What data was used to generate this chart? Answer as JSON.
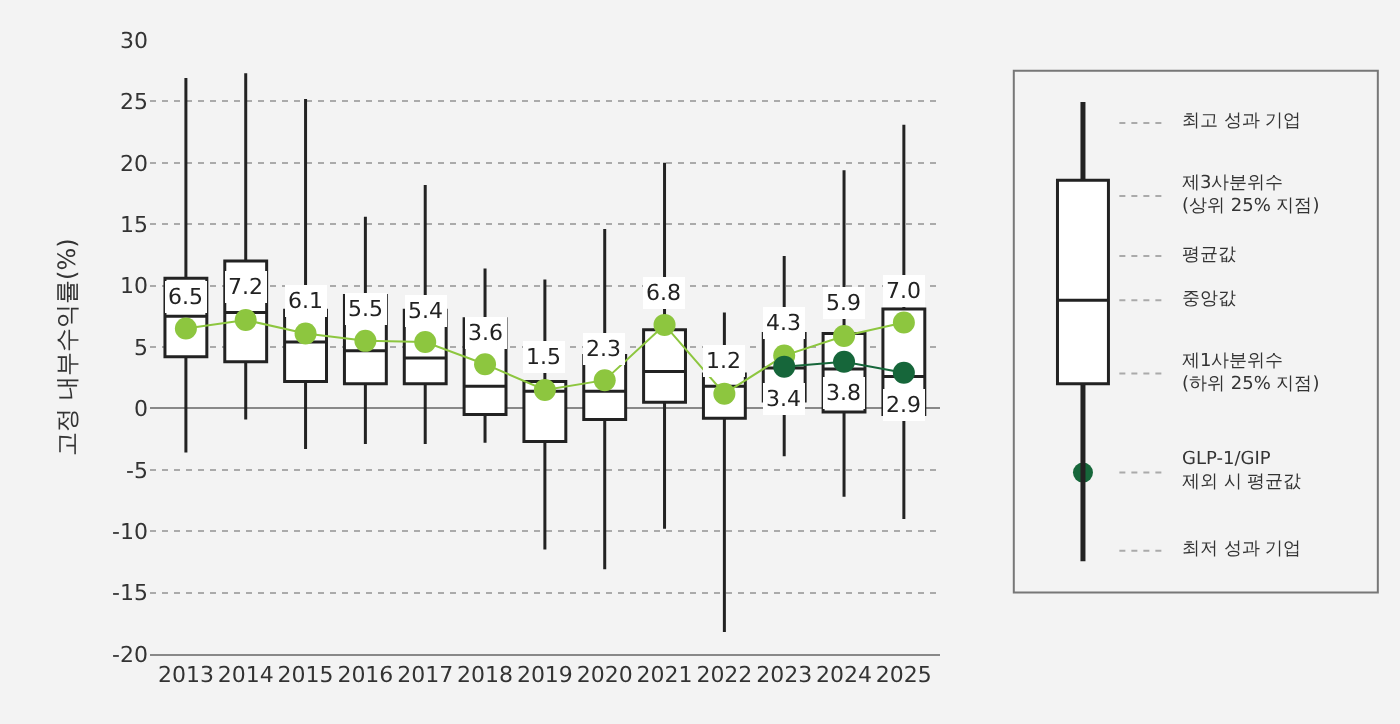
{
  "chart_data": {
    "type": "box",
    "ylabel": "고정 내부수익률(%)",
    "categories": [
      "2013",
      "2014",
      "2015",
      "2016",
      "2017",
      "2018",
      "2019",
      "2020",
      "2021",
      "2022",
      "2023",
      "2024",
      "2025"
    ],
    "boxes": [
      {
        "low": -3.6,
        "q1": 4.2,
        "median": 7.5,
        "q3": 10.6,
        "high": 26.9
      },
      {
        "low": -0.9,
        "q1": 3.8,
        "median": 7.8,
        "q3": 12.0,
        "high": 27.3
      },
      {
        "low": -3.3,
        "q1": 2.2,
        "median": 5.4,
        "q3": 8.0,
        "high": 25.2
      },
      {
        "low": -2.9,
        "q1": 2.0,
        "median": 4.7,
        "q3": 9.2,
        "high": 15.6
      },
      {
        "low": -2.9,
        "q1": 2.0,
        "median": 4.1,
        "q3": 8.0,
        "high": 18.2
      },
      {
        "low": -2.8,
        "q1": -0.5,
        "median": 1.8,
        "q3": 7.3,
        "high": 11.4
      },
      {
        "low": -11.5,
        "q1": -2.7,
        "median": 1.4,
        "q3": 2.2,
        "high": 10.5
      },
      {
        "low": -13.1,
        "q1": -0.9,
        "median": 1.4,
        "q3": 4.3,
        "high": 14.6
      },
      {
        "low": -9.8,
        "q1": 0.5,
        "median": 3.0,
        "q3": 6.4,
        "high": 20.0
      },
      {
        "low": -18.2,
        "q1": -0.8,
        "median": 1.8,
        "q3": 2.8,
        "high": 7.8
      },
      {
        "low": -3.9,
        "q1": 0.6,
        "median": 3.3,
        "q3": 6.1,
        "high": 12.4
      },
      {
        "low": -7.2,
        "q1": -0.3,
        "median": 3.2,
        "q3": 6.1,
        "high": 19.4
      },
      {
        "low": -9.0,
        "q1": -0.5,
        "median": 2.6,
        "q3": 8.1,
        "high": 23.1
      }
    ],
    "series": [
      {
        "name": "평균값",
        "type": "line",
        "color": "#8dc63f",
        "values": [
          6.5,
          7.2,
          6.1,
          5.5,
          5.4,
          3.6,
          1.5,
          2.3,
          6.8,
          1.2,
          4.3,
          5.9,
          7.0
        ],
        "value_labels": [
          "6.5",
          "7.2",
          "6.1",
          "5.5",
          "5.4",
          "3.6",
          "1.5",
          "2.3",
          "6.8",
          "1.2",
          "4.3",
          "5.9",
          "7.0"
        ]
      },
      {
        "name": "GLP-1/GIP\n제외 시 평균값",
        "type": "line",
        "color": "#16663a",
        "values": [
          null,
          null,
          null,
          null,
          null,
          null,
          null,
          null,
          null,
          null,
          3.4,
          3.8,
          2.9
        ],
        "value_labels": [
          null,
          null,
          null,
          null,
          null,
          null,
          null,
          null,
          null,
          null,
          "3.4",
          "3.8",
          "2.9"
        ]
      }
    ],
    "marker": "circle",
    "ylim": [
      -20,
      30
    ],
    "yticks": [
      -20,
      -15,
      -10,
      -5,
      0,
      5,
      10,
      15,
      20,
      25,
      30
    ],
    "grid": "y",
    "legend": "right",
    "annotations": [
      "최고 성과 기업",
      "제3사분위수\n(상위 25% 지점)",
      "중앙값",
      "제1사분위수\n(하위 25% 지점)",
      "최저 성과 기업"
    ]
  }
}
